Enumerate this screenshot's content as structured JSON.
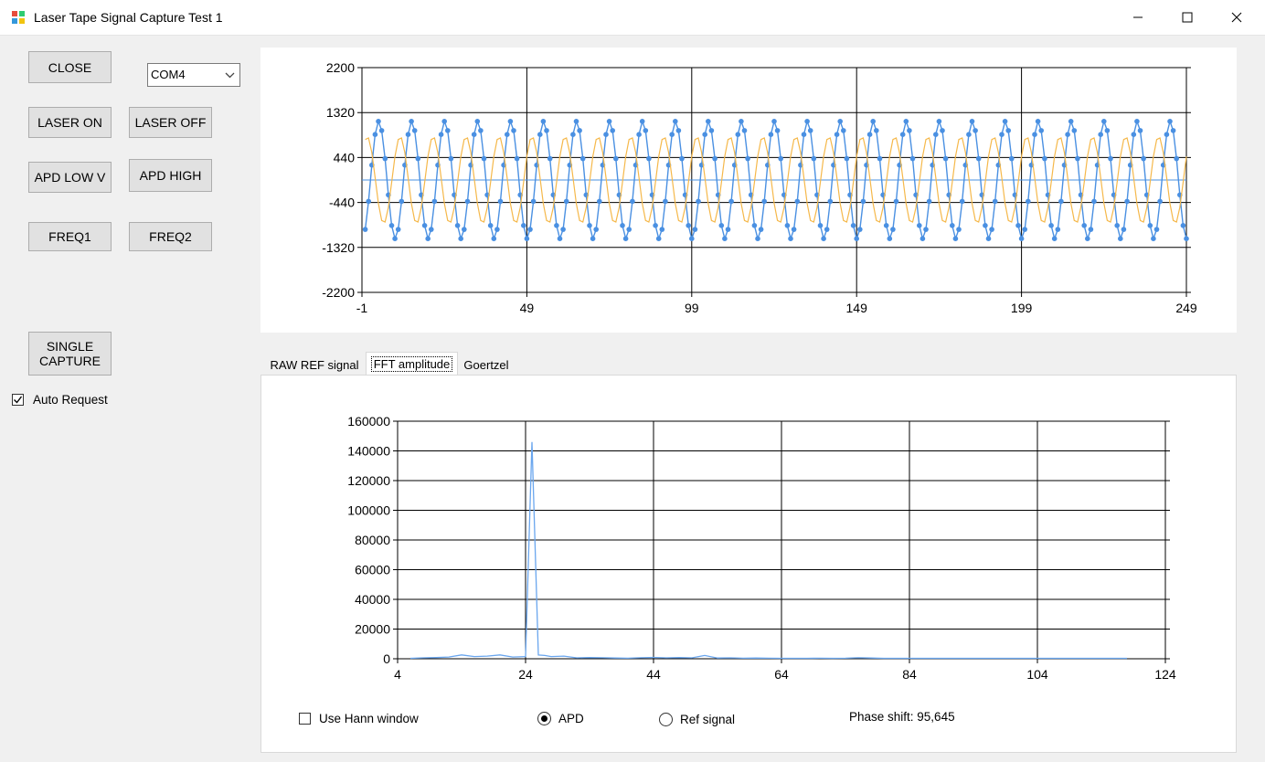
{
  "window": {
    "title": "Laser Tape Signal Capture Test 1"
  },
  "controls": {
    "close": "CLOSE",
    "com_port": "COM4",
    "laser_on": "LASER ON",
    "laser_off": "LASER OFF",
    "apd_low": "APD LOW V",
    "apd_high": "APD HIGH",
    "freq1": "FREQ1",
    "freq2": "FREQ2",
    "single_capture": "SINGLE\nCAPTURE",
    "auto_request": "Auto Request",
    "auto_request_checked": true
  },
  "tabs": [
    {
      "label": "RAW REF signal",
      "active": false
    },
    {
      "label": "FFT amplitude",
      "active": true
    },
    {
      "label": "Goertzel",
      "active": false
    }
  ],
  "bottom": {
    "use_hann": "Use Hann window",
    "use_hann_checked": false,
    "apd": "APD",
    "apd_selected": true,
    "ref_signal": "Ref signal",
    "phase_shift": "Phase shift: 95,645"
  },
  "colors": {
    "apd_series": "#4a90e2",
    "ref_series": "#f5b84a",
    "fft_series": "#6aa6ee"
  },
  "chart_data": [
    {
      "type": "line",
      "xlim": [
        -1,
        249
      ],
      "ylim": [
        -2200,
        2200
      ],
      "x_ticks": [
        -1,
        49,
        99,
        149,
        199,
        249
      ],
      "y_ticks": [
        -2200,
        -1320,
        -440,
        440,
        1320,
        2200
      ],
      "grid": true,
      "series": [
        {
          "marker": "circle",
          "color": "#4a90e2",
          "amplitude": 1150,
          "period": 10.0,
          "phase": -1.0,
          "x_start": 0,
          "x_end": 249
        },
        {
          "marker": "none",
          "color": "#f5b84a",
          "amplitude": 850,
          "period": 10.0,
          "phase": 1.2,
          "x_start": 0,
          "x_end": 249
        }
      ]
    },
    {
      "type": "line",
      "xlim": [
        4,
        124
      ],
      "ylim": [
        0,
        160000
      ],
      "x_ticks": [
        4,
        24,
        44,
        64,
        84,
        104,
        124
      ],
      "y_ticks": [
        0,
        20000,
        40000,
        60000,
        80000,
        100000,
        120000,
        140000,
        160000
      ],
      "grid": true,
      "series": [
        {
          "color": "#6aa6ee",
          "x": [
            6,
            8,
            10,
            12,
            14,
            16,
            18,
            20,
            22,
            24,
            25,
            26,
            27,
            28,
            30,
            32,
            34,
            36,
            38,
            40,
            42,
            44,
            46,
            48,
            50,
            52,
            54,
            56,
            58,
            60,
            62,
            64,
            66,
            68,
            70,
            72,
            74,
            76,
            78,
            80,
            84,
            90,
            96,
            104,
            110,
            118
          ],
          "y": [
            300,
            600,
            800,
            1200,
            2600,
            1500,
            1800,
            2600,
            1200,
            1500,
            146000,
            2500,
            2200,
            1500,
            1800,
            600,
            800,
            700,
            500,
            400,
            700,
            900,
            600,
            800,
            600,
            2200,
            500,
            600,
            400,
            500,
            400,
            300,
            300,
            300,
            400,
            300,
            400,
            700,
            500,
            300,
            300,
            300,
            300,
            300,
            300,
            300
          ]
        }
      ]
    }
  ]
}
